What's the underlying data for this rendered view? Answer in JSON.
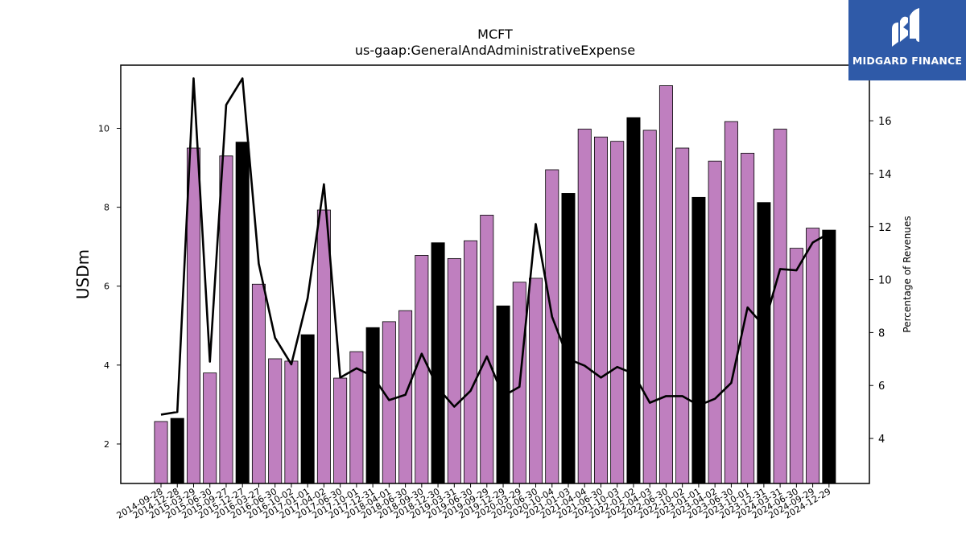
{
  "brand": {
    "name": "MIDGARD FINANCE",
    "bg_color": "#2f5aa8",
    "icon": "midgard-m-logo-icon"
  },
  "chart_data": {
    "type": "bar",
    "title": "MCFT",
    "subtitle": "us-gaap:GeneralAndAdministrativeExpense",
    "ylabel": "USDm",
    "y2label": "Percentage of Revenues",
    "ylim": [
      1.0,
      11.6
    ],
    "y2lim": [
      2.3,
      18.1
    ],
    "yticks": [
      2,
      4,
      6,
      8,
      10
    ],
    "y2ticks": [
      4,
      6,
      8,
      10,
      12,
      14,
      16
    ],
    "grid": false,
    "colors": {
      "quarter": "#bf7fbf",
      "fiscal_year_end": "#000000",
      "line": "#000000"
    },
    "categories": [
      "2014-09-28",
      "2014-12-28",
      "2015-03-29",
      "2015-06-30",
      "2015-09-27",
      "2015-12-27",
      "2016-03-27",
      "2016-06-30",
      "2016-10-02",
      "2017-01-01",
      "2017-04-02",
      "2017-06-30",
      "2017-10-01",
      "2017-12-31",
      "2018-04-01",
      "2018-06-30",
      "2018-09-30",
      "2018-12-30",
      "2019-03-31",
      "2019-06-30",
      "2019-09-29",
      "2019-12-29",
      "2020-03-29",
      "2020-06-30",
      "2020-10-04",
      "2021-01-03",
      "2021-04-04",
      "2021-06-30",
      "2021-10-03",
      "2022-01-02",
      "2022-04-03",
      "2022-06-30",
      "2022-10-02",
      "2023-01-01",
      "2023-04-02",
      "2023-06-30",
      "2023-10-01",
      "2023-12-31",
      "2024-03-31",
      "2024-06-30",
      "2024-09-29",
      "2024-12-29"
    ],
    "series": [
      {
        "name": "",
        "values": [
          2.57,
          2.65,
          9.5,
          3.8,
          9.3,
          9.65,
          6.05,
          4.16,
          4.1,
          4.77,
          7.93,
          3.67,
          4.34,
          4.95,
          5.1,
          5.38,
          6.78,
          7.1,
          6.7,
          7.15,
          7.8,
          5.5,
          6.1,
          6.2,
          8.95,
          8.35,
          9.98,
          9.78,
          9.67,
          10.27,
          9.95,
          11.08,
          9.5,
          8.25,
          9.17,
          10.17,
          9.37,
          8.12,
          9.98,
          6.96,
          7.47,
          7.42
        ],
        "fiscal_year_end": [
          false,
          true,
          false,
          false,
          false,
          true,
          false,
          false,
          false,
          true,
          false,
          false,
          false,
          true,
          false,
          false,
          false,
          true,
          false,
          false,
          false,
          true,
          false,
          false,
          false,
          true,
          false,
          false,
          false,
          true,
          false,
          false,
          false,
          true,
          false,
          false,
          false,
          true,
          false,
          false,
          false,
          true
        ]
      },
      {
        "name": "",
        "axis": "right",
        "type": "line",
        "values": [
          4.9,
          5.0,
          17.6,
          6.9,
          16.6,
          17.6,
          10.6,
          7.8,
          6.8,
          9.3,
          13.6,
          6.3,
          6.65,
          6.35,
          5.45,
          5.65,
          7.2,
          5.9,
          5.2,
          5.8,
          7.1,
          5.6,
          5.95,
          12.1,
          8.6,
          7.0,
          6.75,
          6.3,
          6.7,
          6.45,
          5.35,
          5.6,
          5.6,
          5.25,
          5.5,
          6.1,
          8.95,
          8.25,
          10.4,
          10.35,
          11.4,
          11.75
        ]
      }
    ]
  }
}
